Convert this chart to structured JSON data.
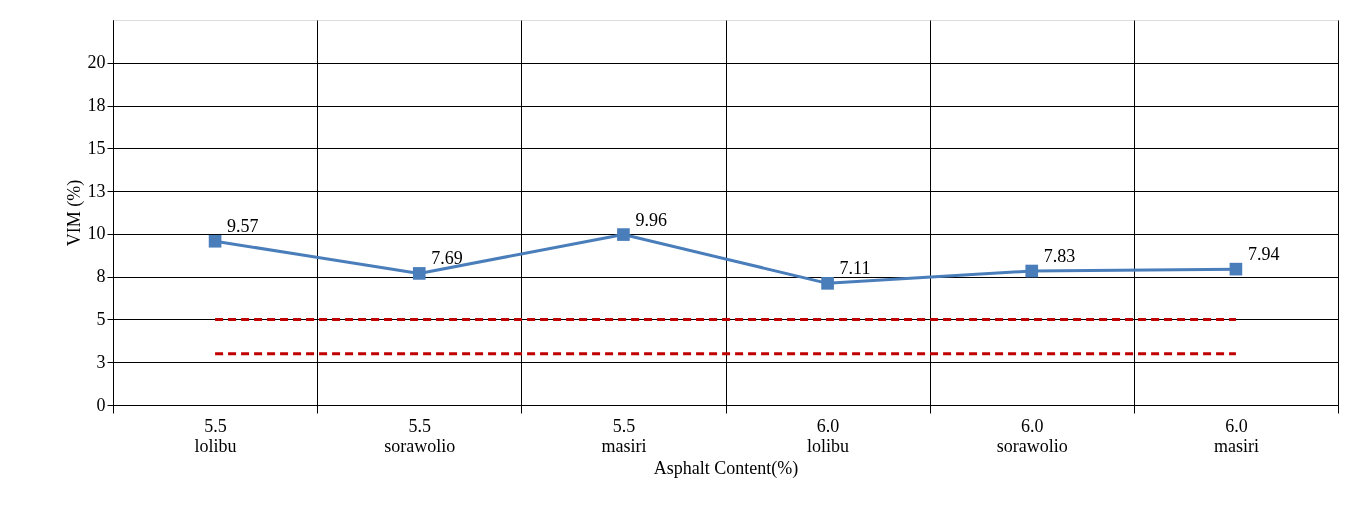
{
  "chart_data": {
    "type": "line",
    "xlabel": "Asphalt Content(%)",
    "ylabel": "VIM (%)",
    "categories": [
      "5.5\nlolibu",
      "5.5\nsorawolio",
      "5.5\nmasiri",
      "6.0\nlolibu",
      "6.0\nsorawolio",
      "6.0\nmasiri"
    ],
    "series": [
      {
        "color": "#4a7ebb",
        "values": [
          9.57,
          7.69,
          9.96,
          7.11,
          7.83,
          7.94
        ]
      }
    ],
    "ylim": [
      0,
      22.5
    ],
    "yticks": [
      0,
      {
        "value": 2.5,
        "label": "3"
      },
      5,
      {
        "value": 7.5,
        "label": "8"
      },
      10,
      {
        "value": 12.5,
        "label": "13"
      },
      15,
      {
        "value": 17.5,
        "label": "18"
      },
      20
    ],
    "ref_lines": [
      {
        "axis": "y",
        "value": 5,
        "color": "#c00000",
        "line_style": "dashed"
      },
      {
        "axis": "y",
        "value": 3,
        "color": "#c00000",
        "line_style": "dashed"
      }
    ],
    "data_labels": true,
    "grid": true,
    "marker": "square",
    "line_style": "solid"
  }
}
